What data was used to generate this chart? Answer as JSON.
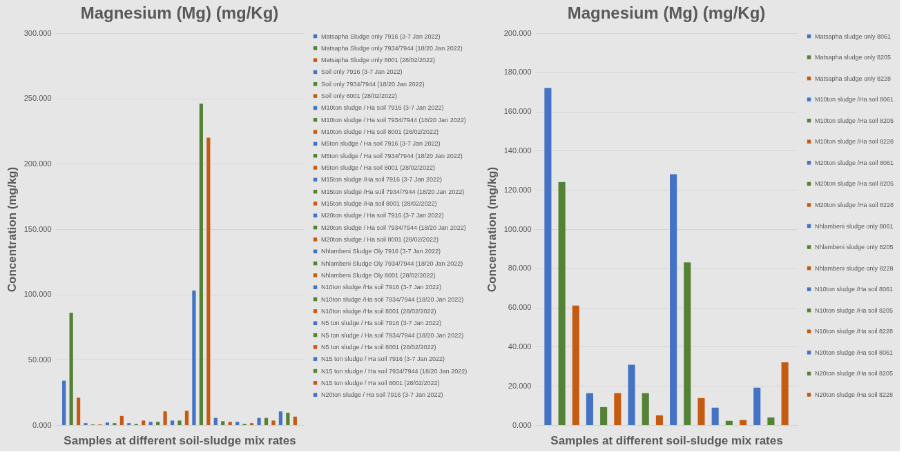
{
  "chart_data": [
    {
      "type": "bar",
      "title": "Magnesium (Mg) (mg/Kg)",
      "xlabel": "Samples at different soil-sludge mix rates",
      "ylabel": "Concentration (mg/kg)",
      "categories": [
        null
      ],
      "series": [
        {
          "name": "Matsapha Sludge only 7916 (3-7 Jan 2022)",
          "color": "#4472c4",
          "values": [
            34
          ]
        },
        {
          "name": "Matsapha Sludge only 7934/7944 (18/20 Jan 2022)",
          "color": "#548235",
          "values": [
            86
          ]
        },
        {
          "name": "Matsapha Sludge only 8001 (28/02/2022)",
          "color": "#c55a11",
          "values": [
            21
          ]
        },
        {
          "name": "Soil only 7916 (3-7 Jan 2022)",
          "color": "#4472c4",
          "values": [
            1.5
          ]
        },
        {
          "name": "Soil only 7934/7944 (18/20 Jan 2022)",
          "color": "#548235",
          "values": [
            0.5
          ]
        },
        {
          "name": "Soil only 8001 (28/02/2022)",
          "color": "#c55a11",
          "values": [
            0.5
          ]
        },
        {
          "name": "M10ton sludge / Ha soil 7916 (3-7 Jan 2022)",
          "color": "#4472c4",
          "values": [
            2
          ]
        },
        {
          "name": "M10ton sludge / Ha soil 7934/7944 (18/20 Jan 2022)",
          "color": "#548235",
          "values": [
            1.5
          ]
        },
        {
          "name": "M10ton sludge / Ha soil 8001 (28/02/2022)",
          "color": "#c55a11",
          "values": [
            7
          ]
        },
        {
          "name": "M5ton sludge / Ha soil 7916 (3-7 Jan 2022)",
          "color": "#4472c4",
          "values": [
            1.5
          ]
        },
        {
          "name": "M5ton sludge / Ha soil 7934/7944 (18/20 Jan 2022)",
          "color": "#548235",
          "values": [
            1
          ]
        },
        {
          "name": "M5ton sludge / Ha soil 8001 (28/02/2022)",
          "color": "#c55a11",
          "values": [
            3.5
          ]
        },
        {
          "name": "M15ton sludge /Ha soil 7916 (3-7 Jan 2022)",
          "color": "#4472c4",
          "values": [
            2.5
          ]
        },
        {
          "name": "M15ton sludge /Ha soil 7934/7944 (18/20 Jan 2022)",
          "color": "#548235",
          "values": [
            2.5
          ]
        },
        {
          "name": "M15ton sludge /Ha soil 8001 (28/02/2022)",
          "color": "#c55a11",
          "values": [
            10.5
          ]
        },
        {
          "name": "M20ton sludge / Ha soil 7916 (3-7 Jan 2022)",
          "color": "#4472c4",
          "values": [
            3.5
          ]
        },
        {
          "name": "M20ton sludge / Ha soil 7934/7944 (18/20 Jan 2022)",
          "color": "#548235",
          "values": [
            3.5
          ]
        },
        {
          "name": "M20ton sludge / Ha soil 8001 (28/02/2022)",
          "color": "#c55a11",
          "values": [
            11
          ]
        },
        {
          "name": "Nhlambeni Sludge Oly 7916 (3-7 Jan 2022)",
          "color": "#4472c4",
          "values": [
            103
          ]
        },
        {
          "name": "Nhlambeni Sludge Oly 7934/7944 (18/20 Jan 2022)",
          "color": "#548235",
          "values": [
            246
          ]
        },
        {
          "name": "Nhlambeni Sludge Oly 8001 (28/02/2022)",
          "color": "#c55a11",
          "values": [
            220
          ]
        },
        {
          "name": "N10ton sludge /Ha soil 7916 (3-7 Jan 2022)",
          "color": "#4472c4",
          "values": [
            5.5
          ]
        },
        {
          "name": "N10ton sludge /Ha soil 7934/7944 (18/20 Jan 2022)",
          "color": "#548235",
          "values": [
            3
          ]
        },
        {
          "name": "N10ton sludge /Ha soil 8001 (28/02/2022)",
          "color": "#c55a11",
          "values": [
            2.5
          ]
        },
        {
          "name": "N5 ton sludge / Ha soil 7916 (3-7 Jan 2022)",
          "color": "#4472c4",
          "values": [
            2.5
          ]
        },
        {
          "name": "N5 ton sludge / Ha soil 7934/7944 (18/20 Jan 2022)",
          "color": "#548235",
          "values": [
            1
          ]
        },
        {
          "name": "N5 ton sludge / Ha soil 8001 (28/02/2022)",
          "color": "#c55a11",
          "values": [
            1.5
          ]
        },
        {
          "name": "N15 ton sludge / Ha soil 7916 (3-7 Jan 2022)",
          "color": "#4472c4",
          "values": [
            5.5
          ]
        },
        {
          "name": "N15 ton sludge / Ha soil 7934/7944 (18/20 Jan 2022)",
          "color": "#548235",
          "values": [
            5.5
          ]
        },
        {
          "name": "N15 ton sludge / Ha soil 8001 (28/02/2022)",
          "color": "#c55a11",
          "values": [
            3.5
          ]
        },
        {
          "name": "N20ton sludge / Ha soil 7916 (3-7 Jan 2022)",
          "color": "#4472c4",
          "values": [
            10.5
          ]
        },
        {
          "color": "#548235",
          "values": [
            9.5
          ]
        },
        {
          "color": "#c55a11",
          "values": [
            6.5
          ]
        }
      ],
      "ylim": [
        0,
        300
      ],
      "yticks": [
        {
          "value": 0,
          "label": "0.000"
        },
        {
          "value": 50,
          "label": "50.000"
        },
        {
          "value": 100,
          "label": "100.000"
        },
        {
          "value": 150,
          "label": "150.000"
        },
        {
          "value": 200,
          "label": "200.000"
        },
        {
          "value": 250,
          "label": "250.000"
        },
        {
          "value": 300,
          "label": "300.000"
        }
      ],
      "grid": "y",
      "legend": "right",
      "tick_labels": "y"
    },
    {
      "type": "bar",
      "title": "Magnesium (Mg) (mg/Kg)",
      "xlabel": "Samples at different soil-sludge mix rates",
      "ylabel": "Concentration (mg/kg)",
      "categories": [
        null
      ],
      "series": [
        {
          "name": "Matsapha sludge only 8061",
          "color": "#4472c4",
          "values": [
            172
          ]
        },
        {
          "name": "Matsapha sludge only 8205",
          "color": "#548235",
          "values": [
            124
          ]
        },
        {
          "name": "Matsapha sludge only 8228",
          "color": "#c55a11",
          "values": [
            61
          ]
        },
        {
          "name": "M10ton sludge /Ha soil 8061",
          "color": "#4472c4",
          "values": [
            16.3
          ]
        },
        {
          "name": "M10ton sludge /Ha soil 8205",
          "color": "#548235",
          "values": [
            9.2
          ]
        },
        {
          "name": "M10ton sludge /Ha soil 8228",
          "color": "#c55a11",
          "values": [
            16.3
          ]
        },
        {
          "name": "M20ton sludge /Ha soil 8061",
          "color": "#4472c4",
          "values": [
            30.8
          ]
        },
        {
          "name": "M20ton sludge /Ha soil 8205",
          "color": "#548235",
          "values": [
            16.3
          ]
        },
        {
          "name": "M20ton sludge /Ha soil 8228",
          "color": "#c55a11",
          "values": [
            5
          ]
        },
        {
          "name": "Nhlambeni sludge only 8061",
          "color": "#4472c4",
          "values": [
            128
          ]
        },
        {
          "name": "Nhlambeni sludge only 8205",
          "color": "#548235",
          "values": [
            83
          ]
        },
        {
          "name": "Nhlambeni sludge only 8228",
          "color": "#c55a11",
          "values": [
            13.8
          ]
        },
        {
          "name": "N10ton sludge /Ha soil 8061",
          "color": "#4472c4",
          "values": [
            8.9
          ]
        },
        {
          "name": "N10ton sludge /Ha soil 8205",
          "color": "#548235",
          "values": [
            2.2
          ]
        },
        {
          "name": "N10ton sludge /Ha soil 8228",
          "color": "#c55a11",
          "values": [
            2.6
          ]
        },
        {
          "name": "N20ton sludge /Ha soil 8061",
          "color": "#4472c4",
          "values": [
            19.1
          ]
        },
        {
          "name": "N20ton sludge /Ha soil 8205",
          "color": "#548235",
          "values": [
            3.9
          ]
        },
        {
          "name": "N20ton sludge /Ha soil 8228",
          "color": "#c55a11",
          "values": [
            32
          ]
        }
      ],
      "ylim": [
        0,
        200
      ],
      "yticks": [
        {
          "value": 0,
          "label": "0.000"
        },
        {
          "value": 20,
          "label": "20.000"
        },
        {
          "value": 40,
          "label": "40.000"
        },
        {
          "value": 60,
          "label": "60.000"
        },
        {
          "value": 80,
          "label": "80.000"
        },
        {
          "value": 100,
          "label": "100.000"
        },
        {
          "value": 120,
          "label": "120.000"
        },
        {
          "value": 140,
          "label": "140.000"
        },
        {
          "value": 160,
          "label": "160.000"
        },
        {
          "value": 180,
          "label": "180.000"
        },
        {
          "value": 200,
          "label": "200.000"
        }
      ],
      "grid": "y",
      "legend": "right",
      "tick_labels": "y"
    }
  ]
}
